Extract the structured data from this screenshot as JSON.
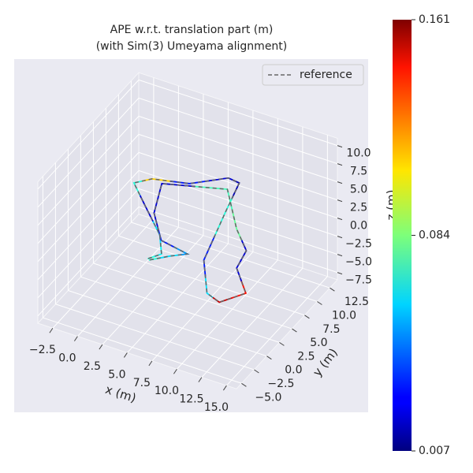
{
  "chart_data": {
    "type": "trajectory3d",
    "title": "APE w.r.t. translation part (m)",
    "subtitle": "(with Sim(3) Umeyama alignment)",
    "x_label": "x (m)",
    "y_label": "y (m)",
    "z_label": "z (m)",
    "xlim": [
      -4,
      16
    ],
    "ylim": [
      -6,
      14
    ],
    "zlim": [
      -8.5,
      11
    ],
    "xticks": [
      {
        "value": -2.5,
        "label": "−2.5"
      },
      {
        "value": 0,
        "label": "0.0"
      },
      2.5,
      {
        "value": 5,
        "label": "5.0"
      },
      7.5,
      {
        "value": 10,
        "label": "10.0"
      },
      12.5,
      {
        "value": 15,
        "label": "15.0"
      }
    ],
    "yticks": [
      {
        "value": -5,
        "label": "−5.0"
      },
      {
        "value": -2.5,
        "label": "−2.5"
      },
      {
        "value": 0,
        "label": "0.0"
      },
      2.5,
      {
        "value": 5,
        "label": "5.0"
      },
      7.5,
      {
        "value": 10,
        "label": "10.0"
      },
      12.5
    ],
    "zticks": [
      {
        "value": -7.5,
        "label": "−7.5"
      },
      {
        "value": -5,
        "label": "−5.0"
      },
      {
        "value": -2.5,
        "label": "−2.5"
      },
      {
        "value": 0,
        "label": "0.0"
      },
      2.5,
      {
        "value": 5,
        "label": "5.0"
      },
      7.5,
      {
        "value": 10,
        "label": "10.0"
      }
    ],
    "grid": true,
    "colormap": "jet",
    "clim": [
      0.007,
      0.161
    ],
    "cticks": [
      0.007,
      0.084,
      0.161
    ],
    "trajectory": {
      "x": [
        4.3,
        5.0,
        3.5,
        0.4,
        -2.2,
        -1.1,
        4.2,
        6.8,
        8.0,
        8.0,
        8.7,
        11.3,
        12.9,
        14.3,
        11.8,
        11.3,
        9.0,
        6.5,
        0.0,
        1.5,
        4.0,
        7.0,
        5.8,
        4.5
      ],
      "y": [
        -0.46,
        0.8,
        3.4,
        6.7,
        9.5,
        10.9,
        7.9,
        10.5,
        10.3,
        7.5,
        1.9,
        -2.6,
        -3.3,
        -0.8,
        2.3,
        5.2,
        7.8,
        10.9,
        10.7,
        6.2,
        2.7,
        2.0,
        0.9,
        -0.6
      ],
      "z": [
        0,
        0,
        0,
        0,
        0,
        0,
        4,
        4,
        4,
        2,
        0,
        0,
        0,
        0,
        0,
        0,
        0,
        2,
        0,
        0,
        0,
        0,
        0,
        0
      ],
      "error": [
        0.07,
        0.065,
        0.06,
        0.02,
        0.07,
        0.11,
        0.03,
        0.02,
        0.015,
        0.07,
        0.03,
        0.06,
        0.15,
        0.14,
        0.02,
        0.02,
        0.08,
        0.075,
        0.02,
        0.02,
        0.03,
        0.05,
        0.06,
        0.07
      ]
    },
    "reference": {
      "name": "reference",
      "color": "#666666",
      "x": [
        4.3,
        5.0,
        3.5,
        0.4,
        -2.2,
        -1.1,
        4.2,
        6.8,
        8.0,
        8.0,
        8.7,
        11.3,
        12.9,
        14.3,
        11.8,
        11.3,
        9.0,
        6.5,
        0.0,
        1.5,
        4.0,
        7.0,
        5.8,
        4.5
      ],
      "y": [
        -0.46,
        0.8,
        3.4,
        6.7,
        9.5,
        10.9,
        7.9,
        10.5,
        10.3,
        7.5,
        1.9,
        -2.6,
        -3.3,
        -0.8,
        2.3,
        5.2,
        7.8,
        10.9,
        10.7,
        6.2,
        2.7,
        2.0,
        0.9,
        -0.6
      ],
      "z": [
        0,
        0,
        0,
        0,
        0,
        0,
        4,
        4,
        4,
        2,
        0,
        0,
        0,
        0,
        0,
        0,
        0,
        2,
        0,
        0,
        0,
        0,
        0,
        0
      ]
    },
    "legend": "upper right"
  }
}
